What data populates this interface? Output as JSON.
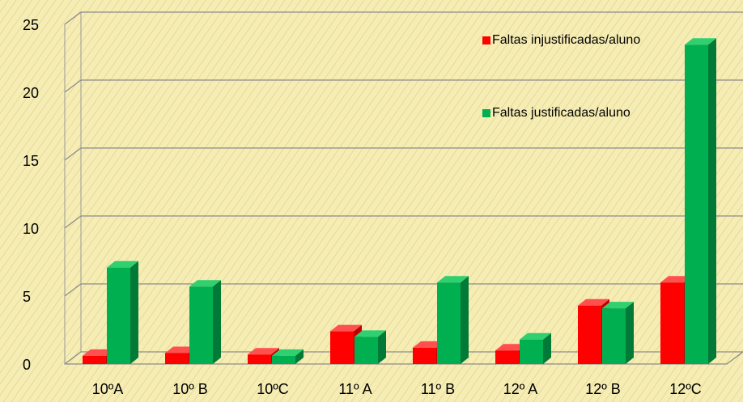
{
  "chart_data": {
    "type": "bar3d",
    "categories": [
      "10ºA",
      "10º B",
      "10ºC",
      "11º A",
      "11º B",
      "12º A",
      "12º B",
      "12ºC"
    ],
    "series": [
      {
        "name": "Faltas injustificadas/aluno",
        "color": "#ff0000",
        "values": [
          0.6,
          0.8,
          0.7,
          2.4,
          1.2,
          1.0,
          4.3,
          6.0
        ]
      },
      {
        "name": "Faltas justificadas/aluno",
        "color": "#00b050",
        "values": [
          7.1,
          5.7,
          0.6,
          2.0,
          6.0,
          1.8,
          4.1,
          23.5
        ]
      }
    ],
    "ylim": [
      0,
      25
    ],
    "yticks": [
      0,
      5,
      10,
      15,
      20,
      25
    ],
    "grid": true,
    "legend": "top-right"
  }
}
